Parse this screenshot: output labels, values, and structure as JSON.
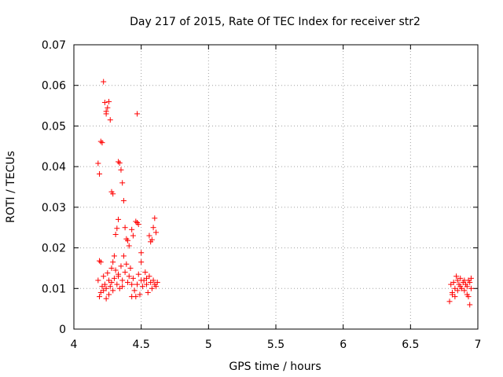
{
  "chart_data": {
    "type": "scatter",
    "title": "Day 217 of 2015, Rate Of TEC Index for receiver str2",
    "xlabel": "GPS time / hours",
    "ylabel": "ROTI / TECUs",
    "xlim": [
      4,
      7
    ],
    "ylim": [
      0,
      0.07
    ],
    "xticks": [
      "4",
      "4.5",
      "5",
      "5.5",
      "6",
      "6.5",
      "7"
    ],
    "yticks": [
      "0",
      "0.01",
      "0.02",
      "0.03",
      "0.04",
      "0.05",
      "0.06",
      "0.07"
    ],
    "grid": true,
    "marker": "plus",
    "color": "#ff0000",
    "points": [
      [
        4.18,
        0.0408
      ],
      [
        4.19,
        0.0382
      ],
      [
        4.19,
        0.0168
      ],
      [
        4.2,
        0.0462
      ],
      [
        4.21,
        0.0459
      ],
      [
        4.22,
        0.0609
      ],
      [
        4.23,
        0.0558
      ],
      [
        4.24,
        0.0536
      ],
      [
        4.24,
        0.053
      ],
      [
        4.25,
        0.0545
      ],
      [
        4.26,
        0.056
      ],
      [
        4.27,
        0.0515
      ],
      [
        4.28,
        0.0338
      ],
      [
        4.29,
        0.0333
      ],
      [
        4.31,
        0.0233
      ],
      [
        4.32,
        0.0248
      ],
      [
        4.33,
        0.027
      ],
      [
        4.33,
        0.0412
      ],
      [
        4.34,
        0.0409
      ],
      [
        4.35,
        0.0392
      ],
      [
        4.36,
        0.036
      ],
      [
        4.37,
        0.0316
      ],
      [
        4.38,
        0.025
      ],
      [
        4.39,
        0.0222
      ],
      [
        4.4,
        0.0218
      ],
      [
        4.41,
        0.0205
      ],
      [
        4.43,
        0.0245
      ],
      [
        4.44,
        0.023
      ],
      [
        4.46,
        0.0265
      ],
      [
        4.47,
        0.0262
      ],
      [
        4.47,
        0.053
      ],
      [
        4.48,
        0.0258
      ],
      [
        4.5,
        0.0188
      ],
      [
        4.56,
        0.023
      ],
      [
        4.57,
        0.0215
      ],
      [
        4.58,
        0.022
      ],
      [
        4.59,
        0.025
      ],
      [
        4.6,
        0.0273
      ],
      [
        4.61,
        0.0238
      ],
      [
        4.18,
        0.012
      ],
      [
        4.19,
        0.008
      ],
      [
        4.2,
        0.0165
      ],
      [
        4.21,
        0.0105
      ],
      [
        4.22,
        0.0095
      ],
      [
        4.22,
        0.013
      ],
      [
        4.23,
        0.011
      ],
      [
        4.24,
        0.01
      ],
      [
        4.24,
        0.0075
      ],
      [
        4.25,
        0.0138
      ],
      [
        4.26,
        0.012
      ],
      [
        4.27,
        0.0105
      ],
      [
        4.28,
        0.015
      ],
      [
        4.28,
        0.0115
      ],
      [
        4.29,
        0.0165
      ],
      [
        4.3,
        0.018
      ],
      [
        4.3,
        0.0125
      ],
      [
        4.31,
        0.0145
      ],
      [
        4.32,
        0.011
      ],
      [
        4.33,
        0.0135
      ],
      [
        4.34,
        0.01
      ],
      [
        4.35,
        0.0155
      ],
      [
        4.36,
        0.012
      ],
      [
        4.37,
        0.018
      ],
      [
        4.38,
        0.014
      ],
      [
        4.39,
        0.016
      ],
      [
        4.4,
        0.0115
      ],
      [
        4.41,
        0.013
      ],
      [
        4.42,
        0.015
      ],
      [
        4.43,
        0.011
      ],
      [
        4.44,
        0.0125
      ],
      [
        4.45,
        0.0095
      ],
      [
        4.46,
        0.008
      ],
      [
        4.47,
        0.011
      ],
      [
        4.48,
        0.0135
      ],
      [
        4.49,
        0.0085
      ],
      [
        4.5,
        0.0165
      ],
      [
        4.51,
        0.0105
      ],
      [
        4.52,
        0.012
      ],
      [
        4.53,
        0.014
      ],
      [
        4.54,
        0.011
      ],
      [
        4.55,
        0.009
      ],
      [
        4.56,
        0.013
      ],
      [
        4.57,
        0.0115
      ],
      [
        4.58,
        0.01
      ],
      [
        4.59,
        0.012
      ],
      [
        4.6,
        0.011
      ],
      [
        4.61,
        0.0105
      ],
      [
        4.62,
        0.0115
      ],
      [
        4.2,
        0.009
      ],
      [
        4.26,
        0.0085
      ],
      [
        4.33,
        0.013
      ],
      [
        4.43,
        0.008
      ],
      [
        4.5,
        0.012
      ],
      [
        4.54,
        0.0125
      ],
      [
        4.29,
        0.0095
      ],
      [
        4.36,
        0.0105
      ],
      [
        6.79,
        0.0068
      ],
      [
        6.8,
        0.011
      ],
      [
        6.81,
        0.009
      ],
      [
        6.81,
        0.0085
      ],
      [
        6.82,
        0.0115
      ],
      [
        6.83,
        0.008
      ],
      [
        6.83,
        0.01
      ],
      [
        6.84,
        0.013
      ],
      [
        6.85,
        0.012
      ],
      [
        6.85,
        0.0095
      ],
      [
        6.86,
        0.011
      ],
      [
        6.87,
        0.0105
      ],
      [
        6.87,
        0.0125
      ],
      [
        6.88,
        0.01
      ],
      [
        6.89,
        0.0115
      ],
      [
        6.9,
        0.012
      ],
      [
        6.9,
        0.0095
      ],
      [
        6.91,
        0.011
      ],
      [
        6.92,
        0.0085
      ],
      [
        6.92,
        0.0105
      ],
      [
        6.93,
        0.012
      ],
      [
        6.93,
        0.008
      ],
      [
        6.94,
        0.006
      ],
      [
        6.94,
        0.0115
      ],
      [
        6.95,
        0.0125
      ],
      [
        6.95,
        0.01
      ]
    ]
  }
}
